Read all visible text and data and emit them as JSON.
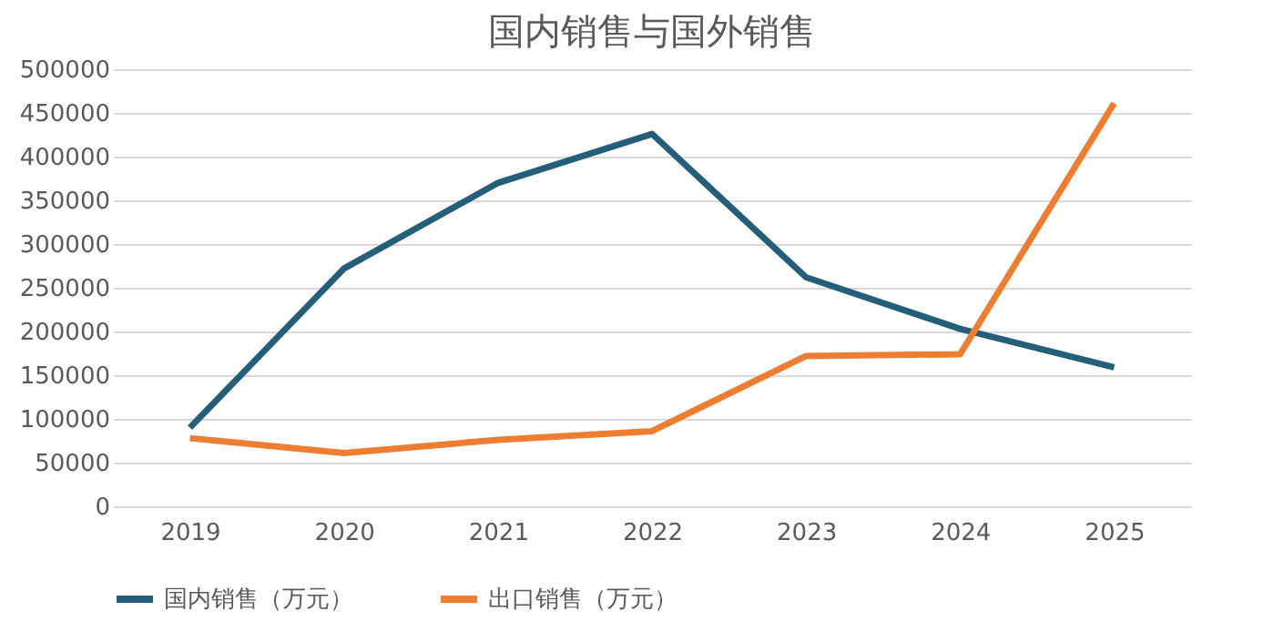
{
  "chart_data": {
    "type": "line",
    "title": "国内销售与国外销售",
    "categories": [
      "2019",
      "2020",
      "2021",
      "2022",
      "2023",
      "2024",
      "2025"
    ],
    "series": [
      {
        "name": "国内销售（万元）",
        "color": "#255e79",
        "values": [
          90000,
          272000,
          370000,
          426000,
          262000,
          203000,
          159000
        ]
      },
      {
        "name": "出口销售（万元）",
        "color": "#ed7d31",
        "values": [
          78000,
          61000,
          76000,
          86000,
          172000,
          174000,
          461000
        ]
      }
    ],
    "ylim": [
      0,
      500000
    ],
    "yticks": [
      0,
      50000,
      100000,
      150000,
      200000,
      250000,
      300000,
      350000,
      400000,
      450000,
      500000
    ],
    "grid": "y",
    "legend": "bottom",
    "marker": "none",
    "line_style": "solid"
  }
}
